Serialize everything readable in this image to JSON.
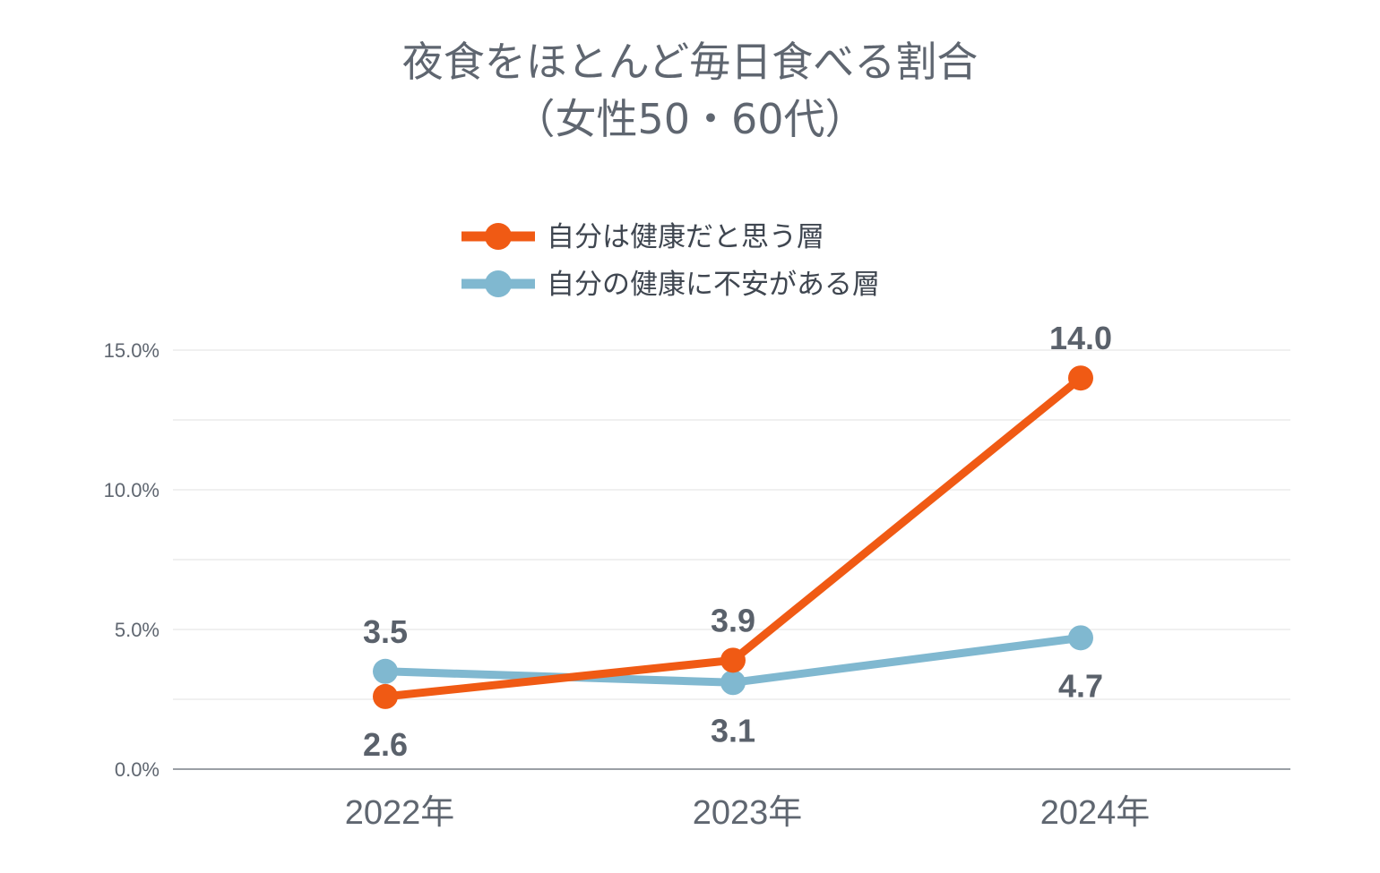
{
  "chart_data": {
    "type": "line",
    "title_line1": "夜食をほとんど毎日食べる割合",
    "title_line2": "（女性50・60代）",
    "categories": [
      "2022年",
      "2023年",
      "2024年"
    ],
    "ylim": [
      0,
      15
    ],
    "y_ticks": [
      "0.0%",
      "5.0%",
      "10.0%",
      "15.0%"
    ],
    "y_tick_values": [
      0,
      5,
      10,
      15
    ],
    "grid": true,
    "legend_position": "top-center",
    "series": [
      {
        "name": "自分は健康だと思う層",
        "color": "#f05a14",
        "values": [
          2.6,
          3.9,
          14.0
        ],
        "labels": [
          "2.6",
          "3.9",
          "14.0"
        ],
        "label_side": [
          "below",
          "above",
          "above"
        ]
      },
      {
        "name": "自分の健康に不安がある層",
        "color": "#80b8d0",
        "values": [
          3.5,
          3.1,
          4.7
        ],
        "labels": [
          "3.5",
          "3.1",
          "4.7"
        ],
        "label_side": [
          "above",
          "below",
          "below"
        ]
      }
    ]
  }
}
